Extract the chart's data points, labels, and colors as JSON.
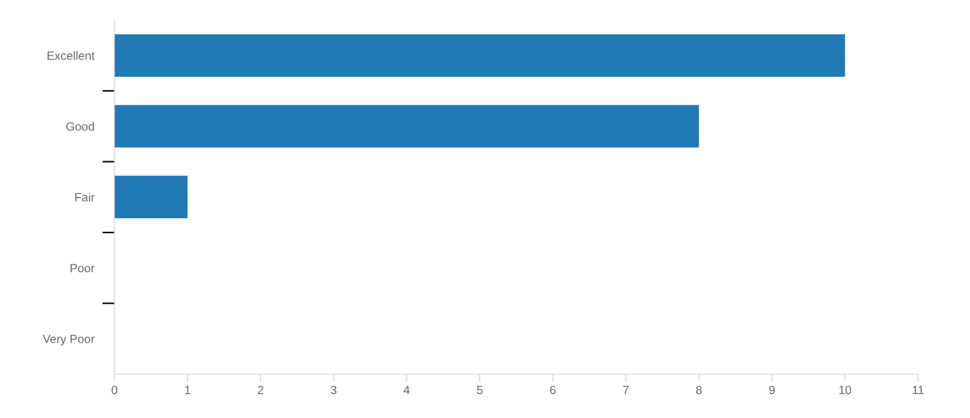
{
  "chart_data": {
    "type": "bar",
    "orientation": "horizontal",
    "categories": [
      "Excellent",
      "Good",
      "Fair",
      "Poor",
      "Very Poor"
    ],
    "values": [
      10,
      8,
      1,
      0,
      0
    ],
    "color": "#2179b5",
    "xlim": [
      0,
      11
    ],
    "xticks": [
      0,
      1,
      2,
      3,
      4,
      5,
      6,
      7,
      8,
      9,
      10,
      11
    ],
    "grid": false,
    "legend": false
  }
}
